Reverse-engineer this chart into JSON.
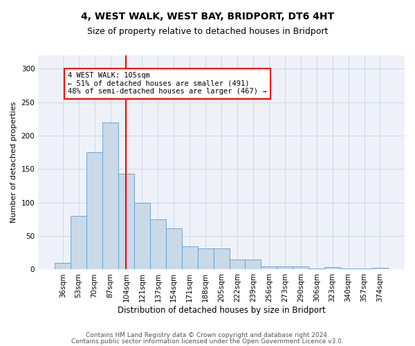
{
  "title1": "4, WEST WALK, WEST BAY, BRIDPORT, DT6 4HT",
  "title2": "Size of property relative to detached houses in Bridport",
  "xlabel": "Distribution of detached houses by size in Bridport",
  "ylabel": "Number of detached properties",
  "categories": [
    "36sqm",
    "53sqm",
    "70sqm",
    "87sqm",
    "104sqm",
    "121sqm",
    "137sqm",
    "154sqm",
    "171sqm",
    "188sqm",
    "205sqm",
    "222sqm",
    "239sqm",
    "256sqm",
    "273sqm",
    "290sqm",
    "306sqm",
    "323sqm",
    "340sqm",
    "357sqm",
    "374sqm"
  ],
  "values": [
    10,
    80,
    175,
    220,
    143,
    100,
    75,
    62,
    35,
    32,
    31,
    15,
    15,
    5,
    5,
    5,
    2,
    4,
    1,
    1,
    3
  ],
  "bar_color": "#c9d9e8",
  "bar_edge_color": "#5b9bd5",
  "red_line_index": 4,
  "annotation_text": "4 WEST WALK: 105sqm\n← 51% of detached houses are smaller (491)\n48% of semi-detached houses are larger (467) →",
  "annotation_box_color": "white",
  "annotation_box_edge_color": "red",
  "ylim": [
    0,
    320
  ],
  "yticks": [
    0,
    50,
    100,
    150,
    200,
    250,
    300
  ],
  "grid_color": "#d0d8e8",
  "footer1": "Contains HM Land Registry data © Crown copyright and database right 2024.",
  "footer2": "Contains public sector information licensed under the Open Government Licence v3.0.",
  "title1_fontsize": 10,
  "title2_fontsize": 9,
  "xlabel_fontsize": 8.5,
  "ylabel_fontsize": 8,
  "tick_fontsize": 7.5,
  "footer_fontsize": 6.5,
  "annotation_fontsize": 7.5,
  "bg_color": "#eef2f8"
}
